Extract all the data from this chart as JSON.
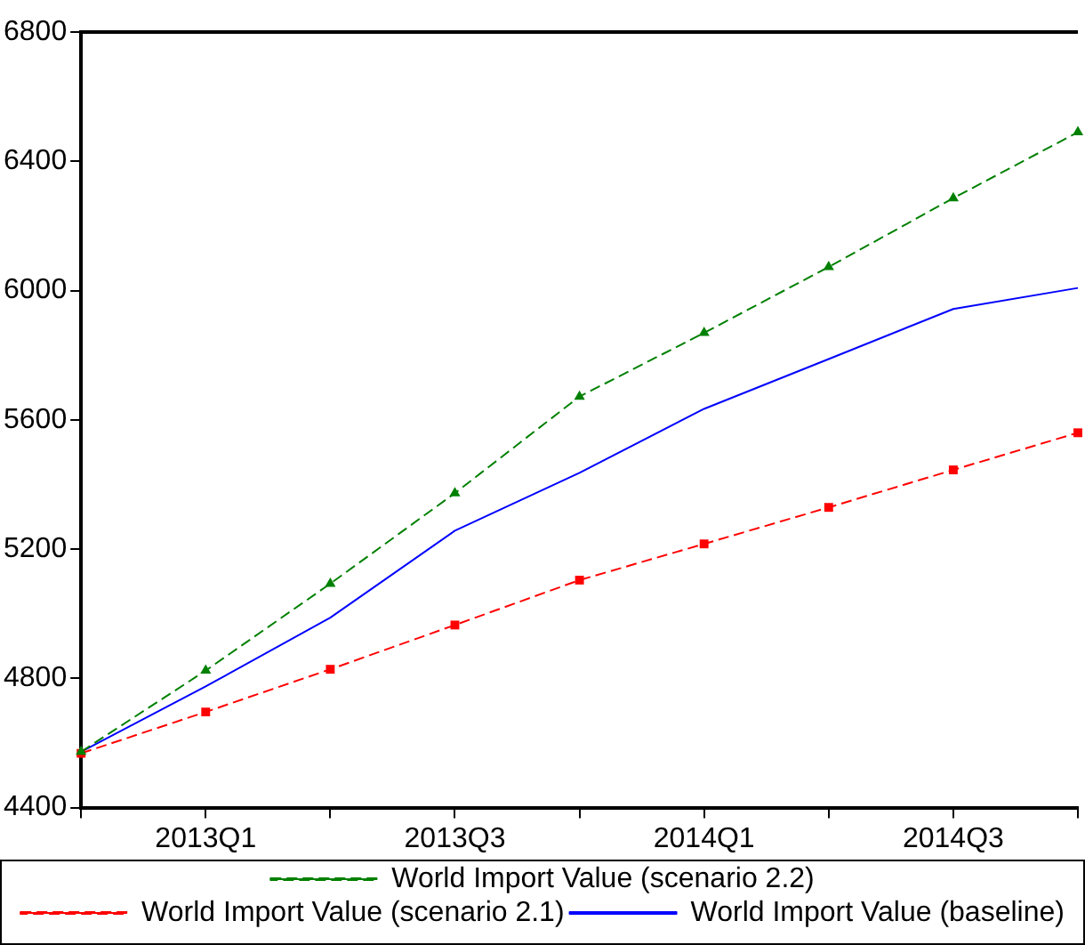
{
  "chart_data": {
    "type": "line",
    "categories": [
      null,
      "2013Q1",
      null,
      "2013Q3",
      null,
      "2014Q1",
      null,
      "2014Q3",
      null
    ],
    "series": [
      {
        "name": "World Import Value (baseline)",
        "color": "#0000ff",
        "marker": "none",
        "line_style": "solid",
        "values": [
          4573,
          4775,
          4988,
          5257,
          5436,
          5634,
          5788,
          5943,
          6008
        ]
      },
      {
        "name": "World Import Value (scenario 2.1)",
        "color": "#ff0000",
        "marker": "square",
        "line_style": "dashed",
        "values": [
          4568,
          4696,
          4828,
          4965,
          5104,
          5216,
          5329,
          5445,
          5560
        ]
      },
      {
        "name": "World Import Value (scenario 2.2)",
        "color": "#008000",
        "marker": "triangle",
        "line_style": "dashed",
        "values": [
          4573,
          4824,
          5093,
          5373,
          5672,
          5869,
          6073,
          6286,
          6490
        ]
      }
    ],
    "ylim": [
      4400,
      6800
    ],
    "yticks": [
      4400,
      4800,
      5200,
      5600,
      6000,
      6400,
      6800
    ],
    "grid": false,
    "legend": "bottom"
  }
}
